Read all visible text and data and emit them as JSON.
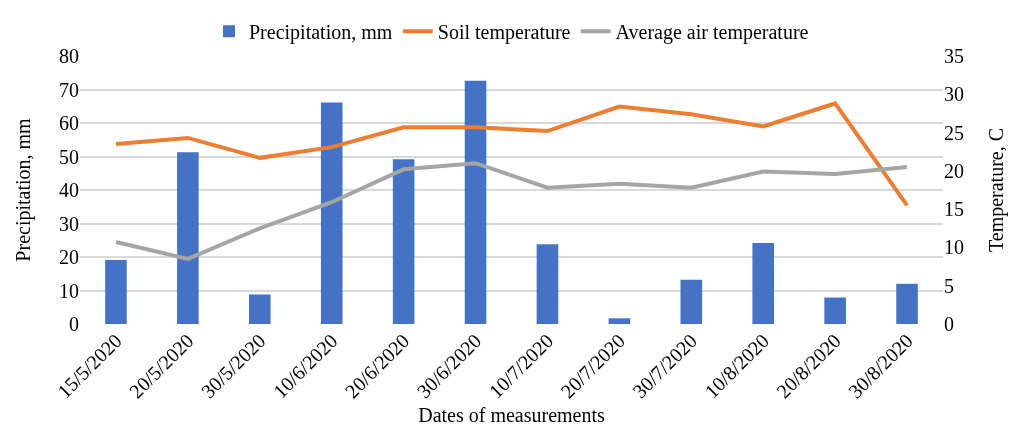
{
  "chart_data": {
    "type": "bar",
    "xlabel": "Dates of measurements",
    "ylabel": "Precipitation, mm",
    "y2label": "Temperature, C",
    "categories": [
      "15/5/2020",
      "20/5/2020",
      "30/5/2020",
      "10/6/2020",
      "20/6/2020",
      "30/6/2020",
      "10/7/2020",
      "20/7/2020",
      "30/7/2020",
      "10/8/2020",
      "20/8/2020",
      "30/8/2020"
    ],
    "series": [
      {
        "name": "Precipitation, mm",
        "color": "#4472c4",
        "values": [
          19.1,
          51.3,
          8.8,
          66.1,
          49.2,
          72.6,
          23.8,
          1.7,
          13.2,
          24.2,
          7.9,
          12.0
        ]
      },
      {
        "name": "Soil temperature",
        "type": "line",
        "axis": "y2",
        "color": "#ed7d31",
        "values": [
          23.5,
          24.3,
          21.7,
          23.1,
          25.7,
          25.7,
          25.2,
          28.4,
          27.4,
          25.8,
          28.8,
          15.5
        ]
      },
      {
        "name": "Average air temperature",
        "type": "line",
        "axis": "y2",
        "color": "#a5a5a5",
        "values": [
          10.7,
          8.5,
          12.5,
          15.9,
          20.2,
          21.0,
          17.8,
          18.3,
          17.8,
          19.9,
          19.6,
          20.5
        ]
      }
    ],
    "ylim": [
      0,
      80
    ],
    "yticks": [
      0,
      10,
      20,
      30,
      40,
      50,
      60,
      70,
      80
    ],
    "y2lim": [
      0,
      35
    ],
    "y2ticks": [
      0,
      5,
      10,
      15,
      20,
      25,
      30,
      35
    ],
    "grid": "y",
    "legend": "top",
    "marker": "none",
    "line_style": "solid"
  }
}
